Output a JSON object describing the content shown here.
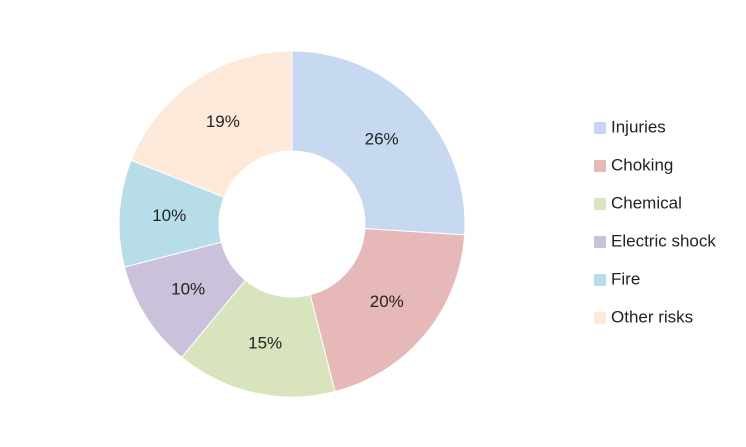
{
  "chart_data": {
    "type": "pie",
    "donut": true,
    "categories": [
      "Injuries",
      "Choking",
      "Chemical",
      "Electric shock",
      "Fire",
      "Other risks"
    ],
    "values": [
      26,
      20,
      15,
      10,
      10,
      19
    ],
    "value_labels": [
      "26%",
      "20%",
      "15%",
      "10%",
      "10%",
      "19%"
    ],
    "colors": [
      "#c6d9f1",
      "#e6b9b8",
      "#d7e4bd",
      "#ccc1da",
      "#b7dee8",
      "#fde9d9"
    ],
    "legend": "right"
  }
}
